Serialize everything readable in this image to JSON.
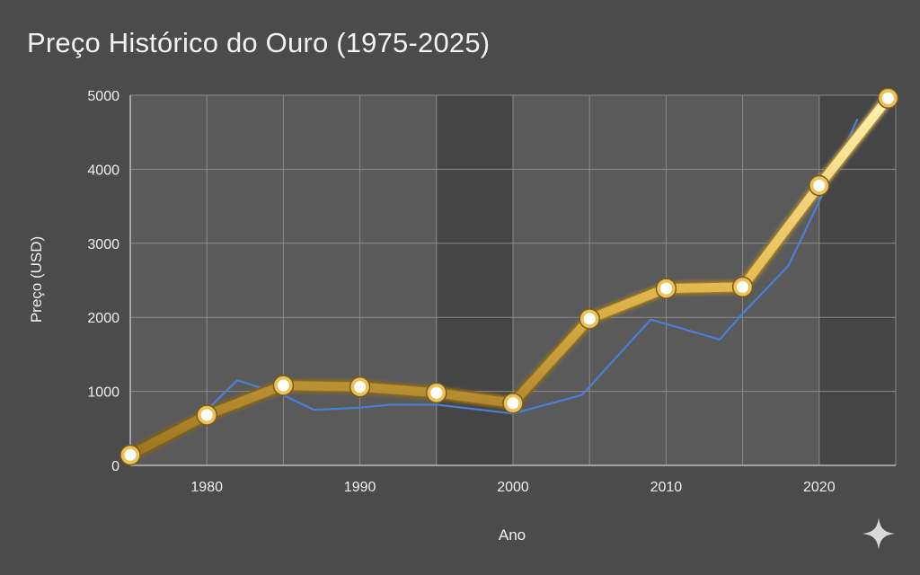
{
  "chart_data": {
    "type": "line",
    "title": "Preço Histórico do Ouro (1975-2025)",
    "xlabel": "Ano",
    "ylabel": "Preço (USD)",
    "xlim": [
      1975,
      2025
    ],
    "ylim": [
      0,
      5000
    ],
    "x_ticks": [
      1980,
      1990,
      2000,
      2010,
      2020
    ],
    "y_ticks": [
      0,
      1000,
      2000,
      3000,
      4000,
      5000
    ],
    "grid": true,
    "legend": "none",
    "series": [
      {
        "color": "#4a7fd6",
        "style": "thin",
        "x": [
          1975,
          1980,
          1982,
          1985,
          1987,
          1990,
          1992,
          1995,
          2000,
          2004.5,
          2009,
          2013.5,
          2015,
          2018,
          2021,
          2022.5
        ],
        "y": [
          130,
          750,
          1150,
          950,
          750,
          780,
          820,
          820,
          700,
          950,
          1970,
          1700,
          2050,
          2700,
          4000,
          4680
        ]
      },
      {
        "color": "#d4a83a",
        "style": "thick-gold",
        "markers": true,
        "x": [
          1975,
          1980,
          1985,
          1990,
          1995,
          2000,
          2005,
          2010,
          2015,
          2020,
          2024.5
        ],
        "y": [
          140,
          680,
          1080,
          1060,
          980,
          840,
          1980,
          2390,
          2410,
          3780,
          4960
        ]
      }
    ]
  },
  "colors": {
    "background": "#4b4b4b",
    "plot_band_light": "#5a5a5a",
    "plot_band_dark": "#454545",
    "grid": "#8a8a8a",
    "gold": "#d4a83a",
    "blue": "#4a7fd6"
  },
  "icons": {
    "watermark": "sparkle-icon"
  }
}
